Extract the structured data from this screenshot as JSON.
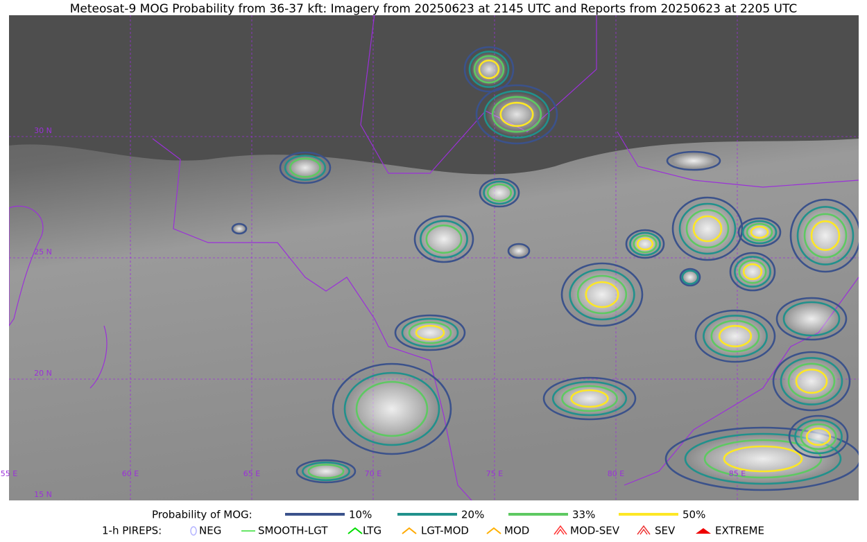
{
  "title": "Meteosat-9 MOG Probability from 36-37 kft: Imagery from 20250623 at 2145 UTC and Reports from 20250623 at 2205 UTC",
  "map": {
    "lon_labels": [
      "55 E",
      "60 E",
      "65 E",
      "70 E",
      "75 E",
      "80 E",
      "85 E"
    ],
    "lat_labels": [
      "30 N",
      "25 N",
      "20 N",
      "15 N"
    ]
  },
  "legend": {
    "probability": {
      "title": "Probability of MOG:",
      "levels": [
        {
          "label": "10%",
          "color": "#3b528b"
        },
        {
          "label": "20%",
          "color": "#21918c"
        },
        {
          "label": "33%",
          "color": "#5ec962"
        },
        {
          "label": "50%",
          "color": "#fde725"
        }
      ]
    },
    "pireps": {
      "title": "1-h PIREPS:",
      "items": [
        {
          "label": "NEG",
          "color": "#b4b4ff"
        },
        {
          "label": "SMOOTH-LGT",
          "color": "#33dd33"
        },
        {
          "label": "LTG",
          "color": "#00dd00"
        },
        {
          "label": "LGT-MOD",
          "color": "#ffaa00"
        },
        {
          "label": "MOD",
          "color": "#ffb000"
        },
        {
          "label": "MOD-SEV",
          "color": "#ff3333"
        },
        {
          "label": "SEV",
          "color": "#ee3333"
        },
        {
          "label": "EXTREME",
          "color": "#ee0000"
        }
      ]
    }
  }
}
